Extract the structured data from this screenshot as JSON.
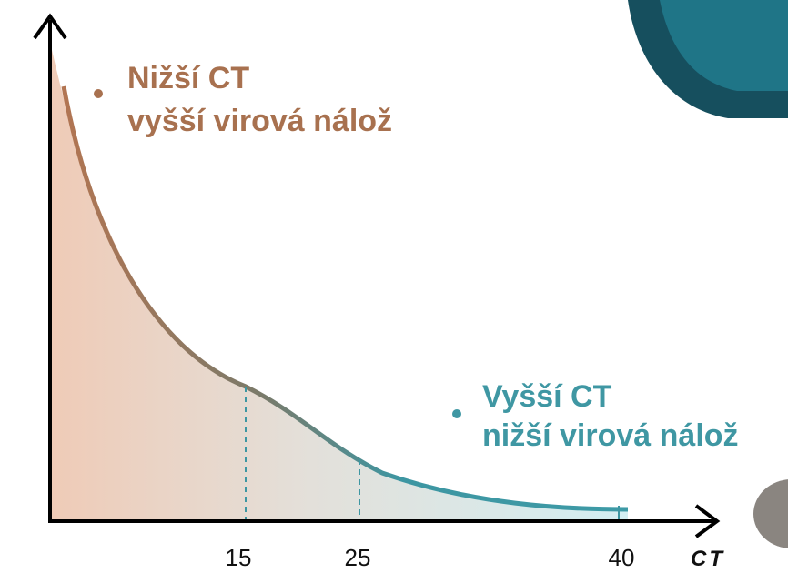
{
  "annotations": [
    {
      "lines": [
        "Nižší CT",
        "vyšší virová nálož"
      ]
    },
    {
      "lines": [
        "Vyšší CT",
        "nižší virová nálož"
      ]
    }
  ],
  "axis": {
    "label": "CT",
    "markers": [
      15,
      25,
      40
    ]
  }
}
